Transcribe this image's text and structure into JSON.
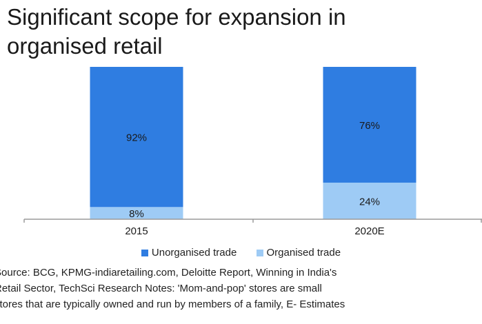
{
  "title_lines": [
    "Significant scope for expansion in",
    "organised retail"
  ],
  "colors": {
    "unorganised": "#2f7de1",
    "organised": "#9ecbf5",
    "axis": "#9a9a9a"
  },
  "chart_data": {
    "type": "bar",
    "stacked": true,
    "categories": [
      "2015",
      "2020E"
    ],
    "series": [
      {
        "name": "Organised trade",
        "values": [
          8,
          24
        ],
        "labels": [
          "8%",
          "24%"
        ]
      },
      {
        "name": "Unorganised trade",
        "values": [
          92,
          76
        ],
        "labels": [
          "92%",
          "76%"
        ]
      }
    ],
    "ylim": [
      0,
      100
    ],
    "grid": false,
    "legend": "bottom"
  },
  "source_lines": [
    "Source: BCG, KPMG-indiaretailing.com, Deloitte Report, Winning in India's",
    "Retail Sector, TechSci Research  Notes: 'Mom-and-pop' stores are small",
    "stores that are typically owned and run by members of a family, E- Estimates"
  ]
}
